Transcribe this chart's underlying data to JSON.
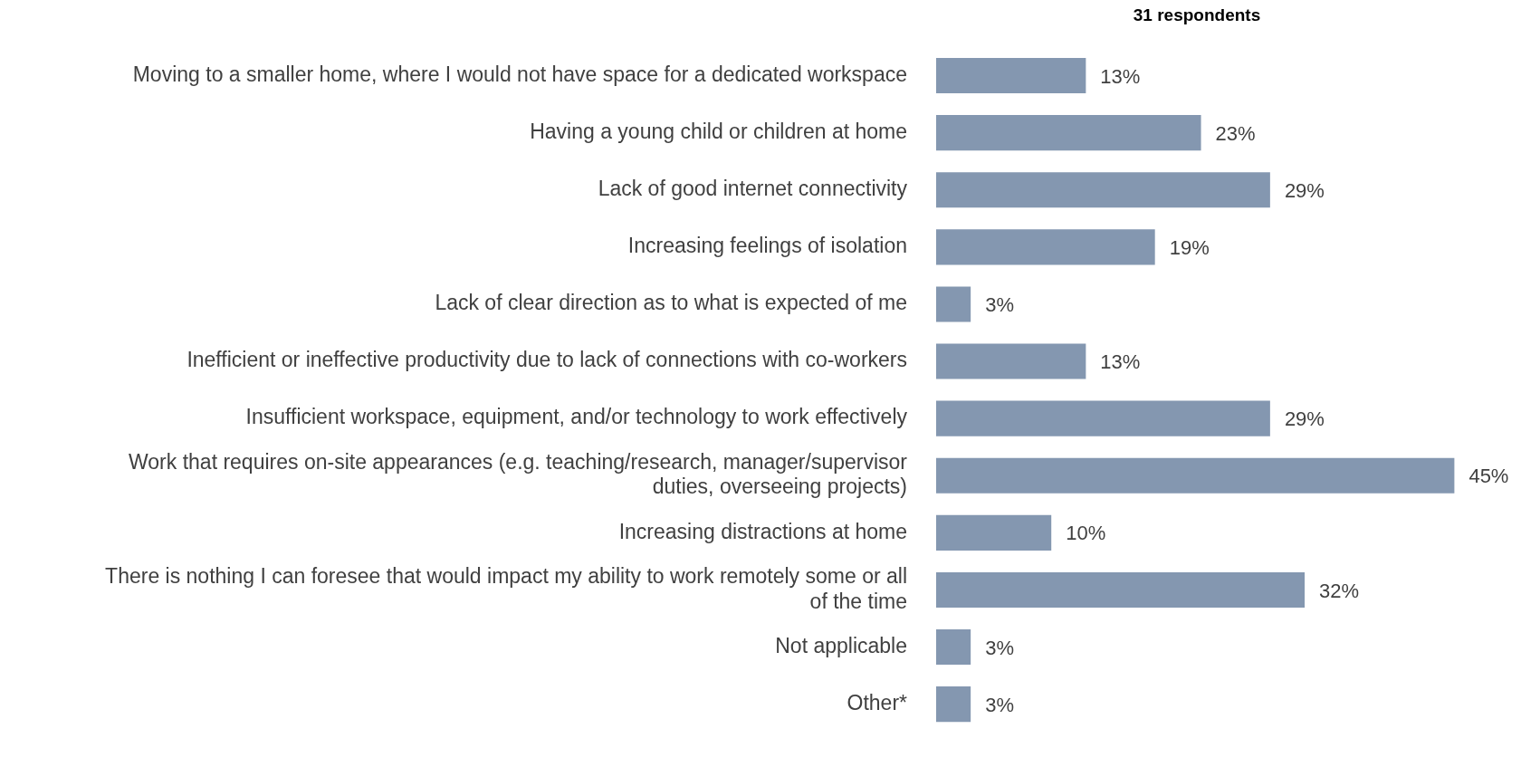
{
  "chart_data": {
    "type": "bar",
    "orientation": "horizontal",
    "title": "31 respondents",
    "categories": [
      "Moving to a smaller home, where I would not have space for a dedicated workspace",
      "Having a young child or children at home",
      "Lack of good internet connectivity",
      "Increasing feelings of isolation",
      "Lack of clear direction as to what is expected of me",
      "Inefficient or ineffective productivity due to lack of connections with co-workers",
      "Insufficient workspace, equipment, and/or technology to work effectively",
      "Work that requires on-site appearances (e.g. teaching/research, manager/supervisor duties, overseeing projects)",
      "Increasing distractions at home",
      "There is nothing I can foresee that would impact my ability to work remotely some or all of the time",
      "Not applicable",
      "Other*"
    ],
    "values": [
      13,
      23,
      29,
      19,
      3,
      13,
      29,
      45,
      10,
      32,
      3,
      3
    ],
    "value_labels": [
      "13%",
      "23%",
      "29%",
      "19%",
      "3%",
      "13%",
      "29%",
      "45%",
      "10%",
      "32%",
      "3%",
      "3%"
    ],
    "color": "#8497b0",
    "legend": false
  }
}
